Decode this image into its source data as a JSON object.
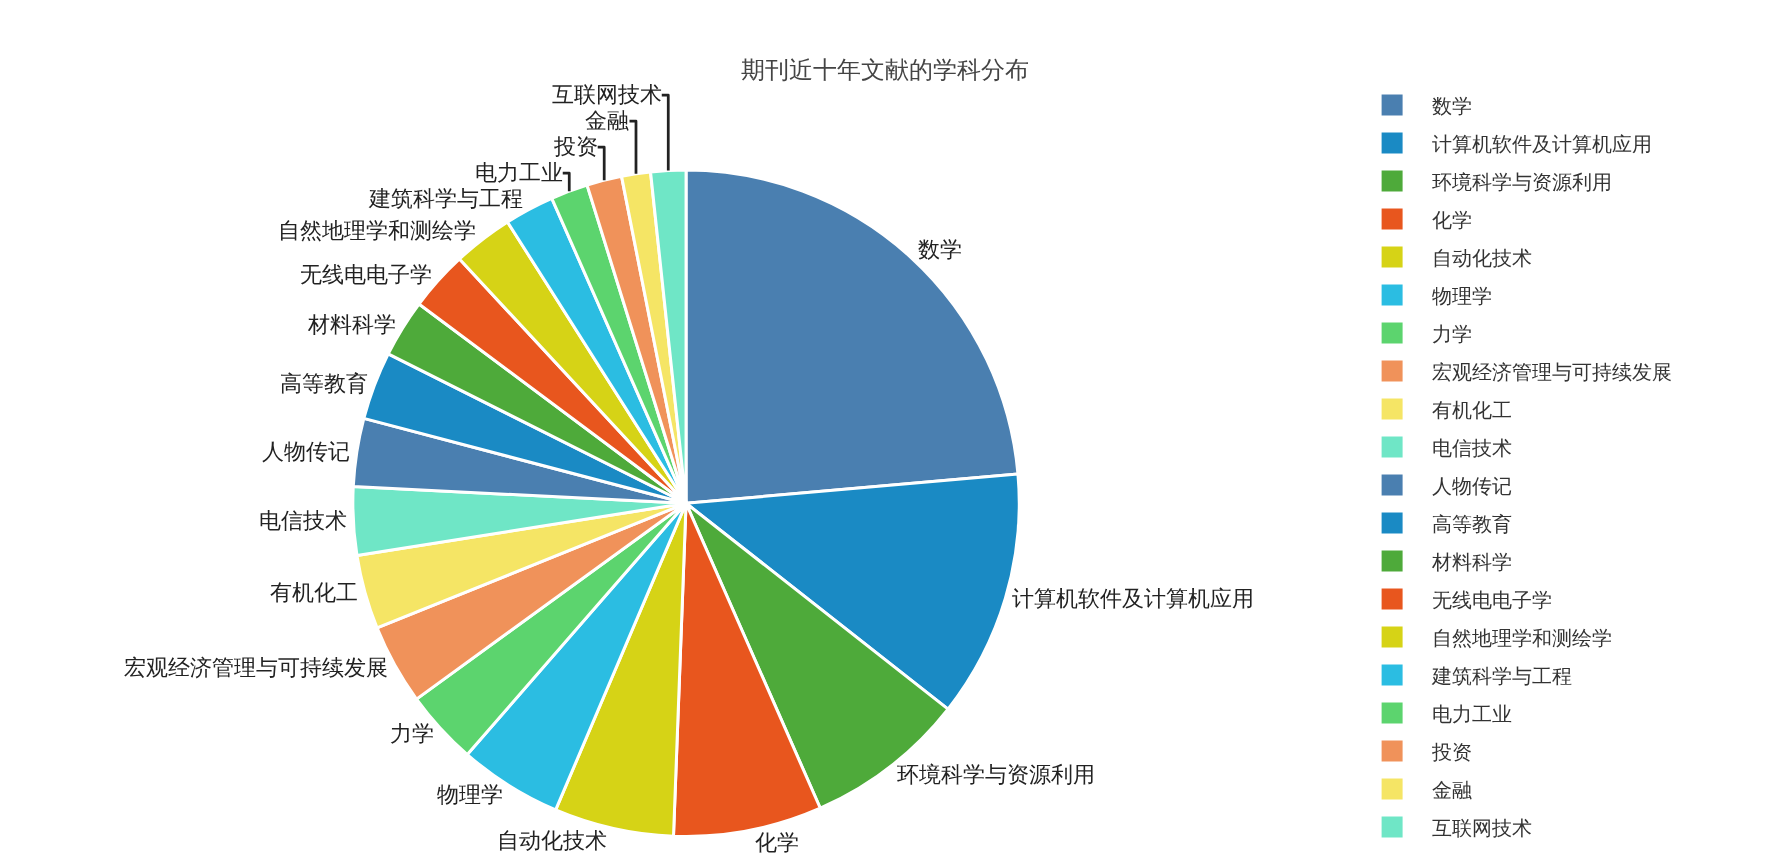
{
  "chart_data": {
    "type": "pie",
    "title": "期刊近十年文献的学科分布",
    "categories": [
      "数学",
      "计算机软件及计算机应用",
      "环境科学与资源利用",
      "化学",
      "自动化技术",
      "物理学",
      "力学",
      "宏观经济管理与可持续发展",
      "有机化工",
      "电信技术",
      "人物传记",
      "高等教育",
      "材料科学",
      "无线电电子学",
      "自然地理学和测绘学",
      "建筑科学与工程",
      "电力工业",
      "投资",
      "金融",
      "互联网技术"
    ],
    "values": [
      23.6,
      12,
      7.8,
      7.2,
      5.8,
      5,
      3.6,
      3.9,
      3.6,
      3.3,
      3.3,
      3.3,
      2.8,
      2.9,
      2.9,
      2.4,
      1.8,
      1.7,
      1.4,
      1.7
    ],
    "colors": [
      "#4a7fb0",
      "#1a8ac4",
      "#4eaa3a",
      "#e8561e",
      "#d6d316",
      "#2bbde2",
      "#5cd46e",
      "#f0925a",
      "#f5e565",
      "#6fe6c6",
      "#4a7fb0",
      "#1a8ac4",
      "#4eaa3a",
      "#e8561e",
      "#d6d316",
      "#2bbde2",
      "#5cd46e",
      "#f0925a",
      "#f5e565",
      "#6fe6c6"
    ],
    "legend": "right"
  }
}
